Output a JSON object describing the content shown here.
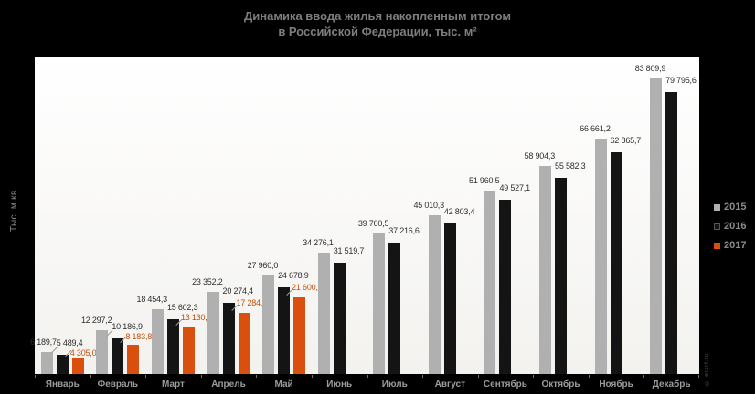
{
  "title": {
    "line1": "Динамика ввода жилья накопленным итогом",
    "line2": "в Российской Федерации, тыс. м²"
  },
  "y_axis_label": "Тыс. м.кв.",
  "watermark": "© erzrf.ru",
  "colors": {
    "background": "#000000",
    "plot_background": "#ffffff",
    "title_text": "#7e7e7e",
    "axis_text": "#9c9c9c",
    "series_2015": "#b0b0b0",
    "series_2016": "#141414",
    "series_2017": "#d94f0d",
    "value_label": "#2e2e2e",
    "value_label_2017": "#c24e0e"
  },
  "legend": [
    {
      "label": "2015",
      "color": "#b0b0b0",
      "border": "#b0b0b0"
    },
    {
      "label": "2016",
      "color": "#141414",
      "border": "#555555"
    },
    {
      "label": "2017",
      "color": "#d94f0d",
      "border": "#d94f0d"
    }
  ],
  "chart_data": {
    "type": "bar",
    "title": "Динамика ввода жилья накопленным итогом в Российской Федерации, тыс. м²",
    "xlabel": "",
    "ylabel": "Тыс. м.кв.",
    "ylim": [
      0,
      90000
    ],
    "grid": false,
    "legend_position": "right",
    "categories": [
      "Январь",
      "Февраль",
      "Март",
      "Апрель",
      "Май",
      "Июнь",
      "Июль",
      "Август",
      "Сентябрь",
      "Октябрь",
      "Ноябрь",
      "Декабрь"
    ],
    "series": [
      {
        "name": "2015",
        "color": "#b0b0b0",
        "label_color": "#2e2e2e",
        "values": [
          6189.7,
          12297.2,
          18454.3,
          23352.2,
          27960.0,
          34276.1,
          39760.5,
          45010.3,
          51960.5,
          58904.3,
          66661.2,
          83809.9
        ],
        "labels": [
          "6 189,7",
          "12 297,2",
          "18 454,3",
          "23 352,2",
          "27 960,0",
          "34 276,1",
          "39 760,5",
          "45 010,3",
          "51 960,5",
          "58 904,3",
          "66 661,2",
          "83 809,9"
        ]
      },
      {
        "name": "2016",
        "color": "#141414",
        "label_color": "#2e2e2e",
        "values": [
          5489.4,
          10186.9,
          15602.3,
          20274.4,
          24678.9,
          31519.7,
          37216.6,
          42803.4,
          49527.1,
          55582.3,
          62865.7,
          79795.6
        ],
        "labels": [
          "5 489,4",
          "10 186,9",
          "15 602,3",
          "20 274,4",
          "24 678,9",
          "31 519,7",
          "37 216,6",
          "42 803,4",
          "49 527,1",
          "55 582,3",
          "62 865,7",
          "79 795,6"
        ]
      },
      {
        "name": "2017",
        "color": "#d94f0d",
        "label_color": "#c24e0e",
        "values": [
          4305.0,
          8183.8,
          13130.4,
          17284.8,
          21600.0,
          null,
          null,
          null,
          null,
          null,
          null,
          null
        ],
        "labels": [
          "4 305,0",
          "8 183,8",
          "13 130,4",
          "17 284,8",
          "21 600,0",
          null,
          null,
          null,
          null,
          null,
          null,
          null
        ]
      }
    ]
  }
}
